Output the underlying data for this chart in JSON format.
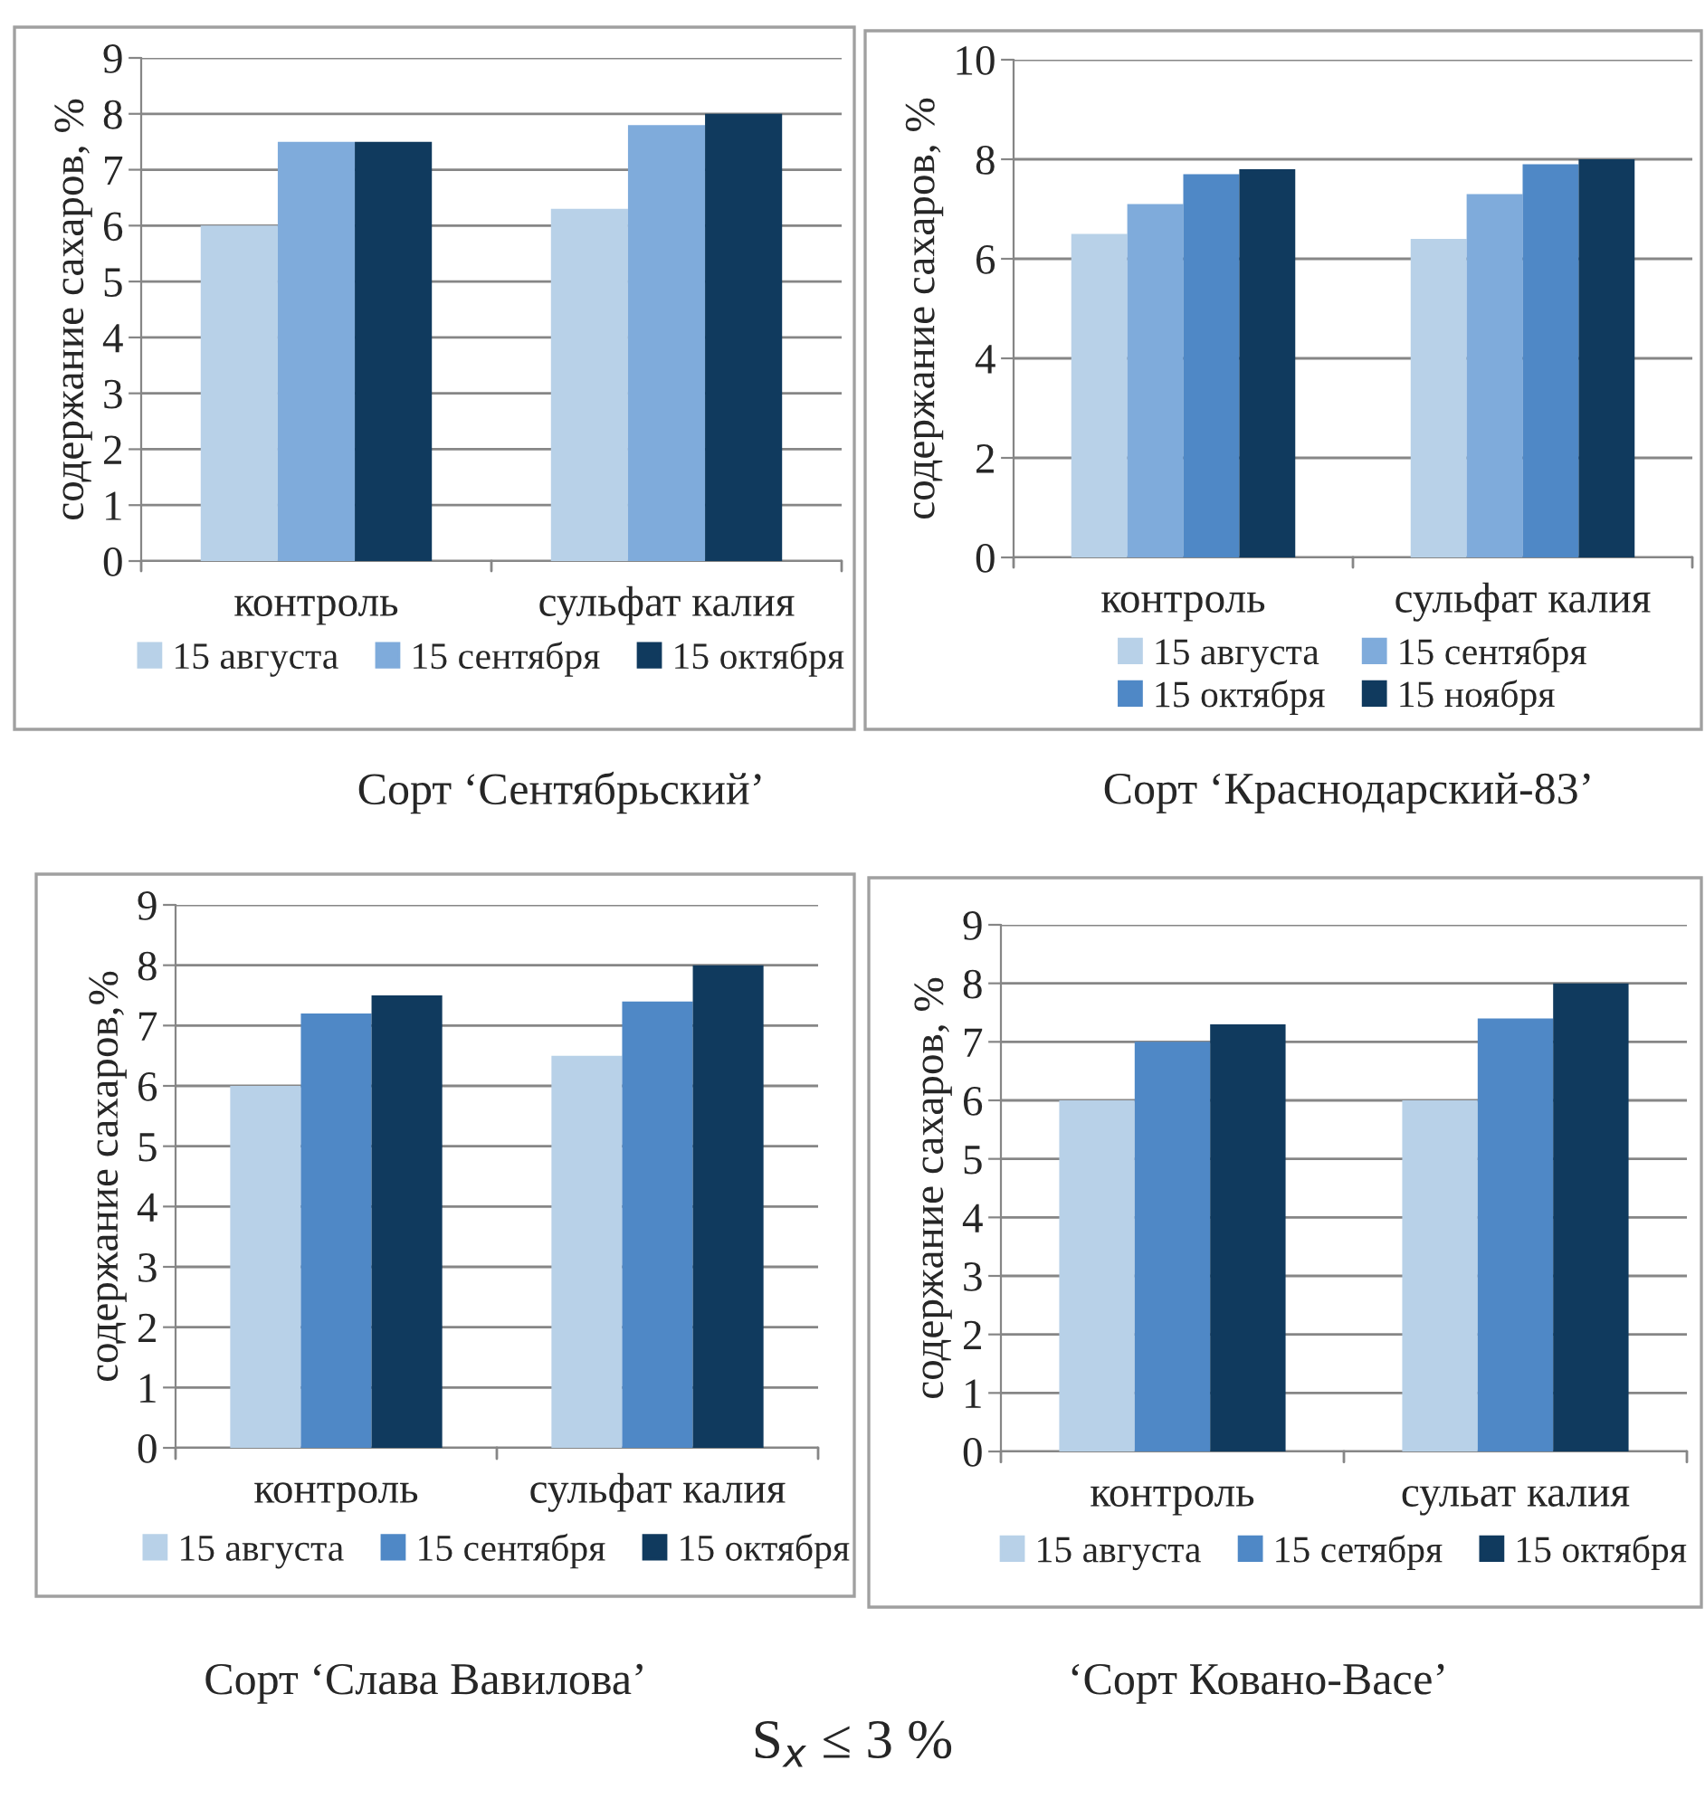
{
  "chart_data": [
    {
      "type": "bar",
      "title": "Сорт ‘Сентябрьский’",
      "ylabel": "содержание сахаров, %",
      "categories": [
        "контроль",
        "сульфат калия"
      ],
      "ylim": [
        0,
        9
      ],
      "yticks": [
        0,
        1,
        2,
        3,
        4,
        5,
        6,
        7,
        8,
        9
      ],
      "grid": "y",
      "legend": "bottom",
      "series": [
        {
          "name": "15 августа",
          "color": "#b8d1e8",
          "values": [
            6.0,
            6.3
          ]
        },
        {
          "name": "15 сентября",
          "color": "#7fabdb",
          "values": [
            7.5,
            7.8
          ]
        },
        {
          "name": "15 октября",
          "color": "#103a5e",
          "values": [
            7.5,
            8.0
          ]
        }
      ]
    },
    {
      "type": "bar",
      "title": "Сорт ‘Краснодарский-83’",
      "ylabel": "содержание сахаров, %",
      "categories": [
        "контроль",
        "сульфат калия"
      ],
      "ylim": [
        0,
        10
      ],
      "yticks": [
        0,
        2,
        4,
        6,
        8,
        10
      ],
      "grid": "y",
      "legend": "bottom",
      "series": [
        {
          "name": "15 августа",
          "color": "#b8d1e8",
          "values": [
            6.5,
            6.4
          ]
        },
        {
          "name": "15 сентября",
          "color": "#7fabdb",
          "values": [
            7.1,
            7.3
          ]
        },
        {
          "name": "15 октября",
          "color": "#4f88c6",
          "values": [
            7.7,
            7.9
          ]
        },
        {
          "name": "15 ноября",
          "color": "#103a5e",
          "values": [
            7.8,
            8.0
          ]
        }
      ]
    },
    {
      "type": "bar",
      "title": "Сорт ‘Слава Вавилова’",
      "ylabel": "содержание сахаров,%",
      "categories": [
        "контроль",
        "сульфат калия"
      ],
      "ylim": [
        0,
        9
      ],
      "yticks": [
        0,
        1,
        2,
        3,
        4,
        5,
        6,
        7,
        8,
        9
      ],
      "grid": "y",
      "legend": "bottom",
      "series": [
        {
          "name": "15 августа",
          "color": "#b8d1e8",
          "values": [
            6.0,
            6.5
          ]
        },
        {
          "name": "15 сентября",
          "color": "#4f88c6",
          "values": [
            7.2,
            7.4
          ]
        },
        {
          "name": "15 октября",
          "color": "#103a5e",
          "values": [
            7.5,
            8.0
          ]
        }
      ]
    },
    {
      "type": "bar",
      "title": "‘Сорт Ковано-Васе’",
      "ylabel": "содержание сахаров, %",
      "categories": [
        "контроль",
        "сульат калия"
      ],
      "ylim": [
        0,
        9
      ],
      "yticks": [
        0,
        1,
        2,
        3,
        4,
        5,
        6,
        7,
        8,
        9
      ],
      "grid": "y",
      "legend": "bottom",
      "annotations": [
        "S$_{x}$ ≤ 3 %"
      ],
      "series": [
        {
          "name": "15 августа",
          "color": "#b8d1e8",
          "values": [
            6.0,
            6.0
          ]
        },
        {
          "name": "15 сетября",
          "color": "#4f88c6",
          "values": [
            7.0,
            7.4
          ]
        },
        {
          "name": "15 октября",
          "color": "#103a5e",
          "values": [
            7.3,
            8.0
          ]
        }
      ]
    }
  ]
}
